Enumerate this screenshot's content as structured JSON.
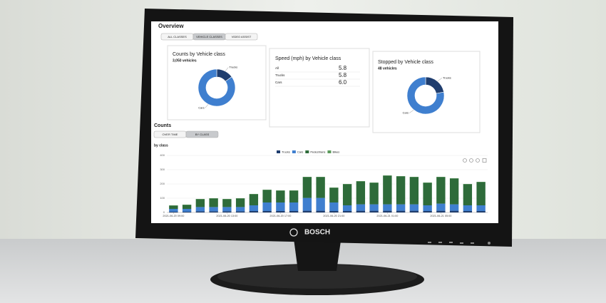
{
  "brand": "BOSCH",
  "overview": {
    "title": "Overview",
    "tabs": [
      "ALL CLASSES",
      "VEHICLE CLASSES",
      "VIDEO ASSIST"
    ],
    "cards": [
      {
        "title": "Counts by Vehicle class",
        "subtitle": "3,050 vehicles",
        "slices": [
          {
            "name": "Trucks",
            "value": 15,
            "color": "#1f3d6e"
          },
          {
            "name": "Cars",
            "value": 85,
            "color": "#3f7fcf"
          }
        ]
      },
      {
        "title": "Speed (mph) by Vehicle class",
        "rows": [
          [
            "All",
            "5.8"
          ],
          [
            "Trucks",
            "5.8"
          ],
          [
            "Cars",
            "6.0"
          ]
        ]
      },
      {
        "title": "Stopped by Vehicle class",
        "subtitle": "48 vehicles",
        "slices": [
          {
            "name": "Trucks",
            "value": 22,
            "color": "#1f3d6e"
          },
          {
            "name": "Cars",
            "value": 78,
            "color": "#3f7fcf"
          }
        ]
      }
    ]
  },
  "counts": {
    "title": "Counts",
    "tabs": [
      "OVER TIME",
      "BY CLASS"
    ]
  },
  "chart_data": {
    "type": "bar",
    "stacked": true,
    "subtitle": "by class",
    "categories": [
      "2021-06-20 09:00",
      null,
      null,
      null,
      "2021-06-20 13:00",
      null,
      null,
      null,
      "2021-06-20 17:00",
      null,
      null,
      null,
      "2021-06-20 21:00",
      null,
      null,
      null,
      "2021-06-21 01:00",
      null,
      null,
      null,
      "2021-06-21 05:00",
      null,
      null,
      null
    ],
    "series": [
      {
        "name": "Trucks",
        "color": "#1f3d6e",
        "values": [
          5,
          5,
          8,
          8,
          8,
          8,
          10,
          10,
          10,
          10,
          12,
          12,
          10,
          10,
          12,
          12,
          12,
          12,
          12,
          10,
          12,
          12,
          10,
          10
        ]
      },
      {
        "name": "Cars",
        "color": "#3f7fcf",
        "values": [
          20,
          20,
          30,
          30,
          30,
          30,
          40,
          60,
          60,
          60,
          90,
          90,
          60,
          40,
          45,
          45,
          45,
          45,
          45,
          40,
          50,
          45,
          40,
          40
        ]
      },
      {
        "name": "Pedestrians",
        "color": "#2e6b3a",
        "values": [
          23,
          28,
          55,
          60,
          55,
          60,
          78,
          88,
          83,
          83,
          146,
          146,
          103,
          148,
          161,
          151,
          201,
          196,
          191,
          158,
          186,
          181,
          148,
          163
        ]
      },
      {
        "name": "Bikes",
        "color": "#5b9a5b",
        "values": [
          2,
          2,
          2,
          2,
          2,
          2,
          2,
          2,
          2,
          2,
          2,
          2,
          2,
          2,
          2,
          2,
          2,
          2,
          2,
          2,
          2,
          2,
          2,
          2
        ]
      }
    ],
    "ylim": [
      0,
      400
    ],
    "yticks": [
      0,
      100,
      200,
      300,
      400
    ]
  }
}
